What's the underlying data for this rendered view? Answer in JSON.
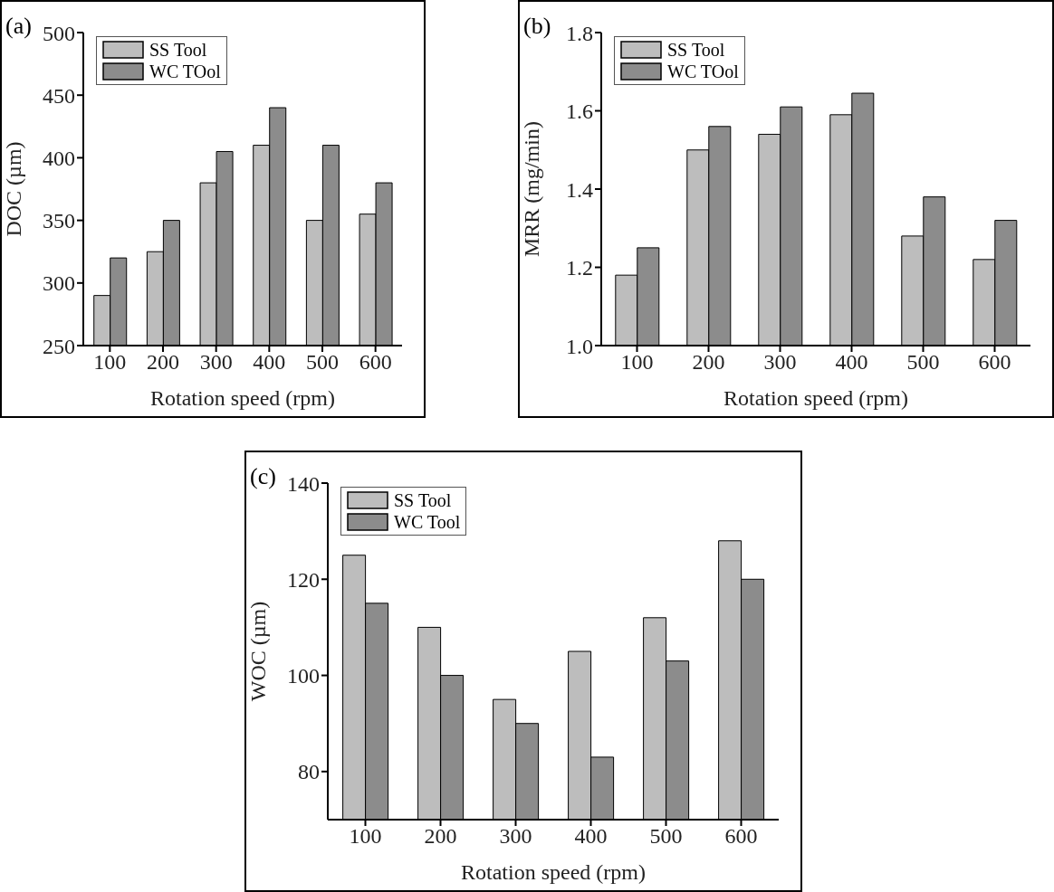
{
  "chart_data": [
    {
      "type": "bar",
      "title": "(a)",
      "xlabel": "Rotation speed (rpm)",
      "ylabel": "DOC (µm)",
      "categories": [
        "100",
        "200",
        "300",
        "400",
        "500",
        "600"
      ],
      "series": [
        {
          "name": "SS Tool",
          "color": "#bdbdbd",
          "values": [
            290,
            325,
            380,
            410,
            350,
            355
          ]
        },
        {
          "name": "WC TOol",
          "color": "#8c8c8c",
          "values": [
            320,
            350,
            405,
            440,
            410,
            380
          ]
        }
      ],
      "ylim": [
        250,
        500
      ],
      "yticks": [
        250,
        300,
        350,
        400,
        450,
        500
      ],
      "grid": false,
      "legend": "top left"
    },
    {
      "type": "bar",
      "title": "(b)",
      "xlabel": "Rotation speed (rpm)",
      "ylabel": "MRR (mg/min)",
      "categories": [
        "100",
        "200",
        "300",
        "400",
        "500",
        "600"
      ],
      "series": [
        {
          "name": "SS Tool",
          "color": "#bdbdbd",
          "values": [
            1.18,
            1.5,
            1.54,
            1.59,
            1.28,
            1.22
          ]
        },
        {
          "name": "WC TOol",
          "color": "#8c8c8c",
          "values": [
            1.25,
            1.56,
            1.61,
            1.645,
            1.38,
            1.32
          ]
        }
      ],
      "ylim": [
        1.0,
        1.8
      ],
      "yticks": [
        {
          "value": 1.0,
          "label": "1.0"
        },
        1.2,
        1.4,
        1.6,
        1.8
      ],
      "grid": false,
      "legend": "top left"
    },
    {
      "type": "bar",
      "title": "(c)",
      "xlabel": "Rotation speed (rpm)",
      "ylabel": "WOC (µm)",
      "categories": [
        "100",
        "200",
        "300",
        "400",
        "500",
        "600"
      ],
      "series": [
        {
          "name": "SS Tool",
          "color": "#bdbdbd",
          "values": [
            125,
            110,
            95,
            105,
            112,
            128
          ]
        },
        {
          "name": "WC Tool",
          "color": "#8c8c8c",
          "values": [
            115,
            100,
            90,
            83,
            103,
            120
          ]
        }
      ],
      "ylim": [
        70,
        140
      ],
      "yticks": [
        80,
        100,
        120,
        140
      ],
      "grid": false,
      "legend": "top left"
    }
  ]
}
